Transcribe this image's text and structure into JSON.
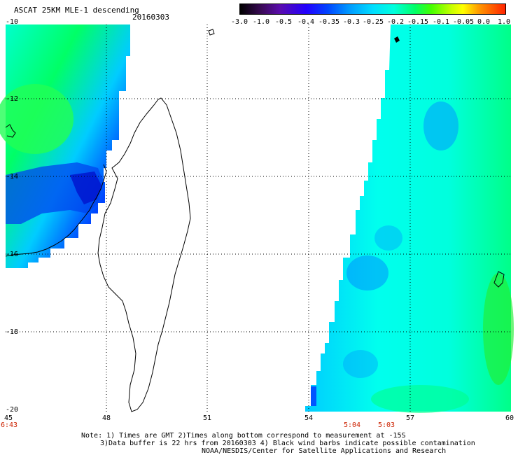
{
  "header": {
    "title": "ASCAT 25KM MLE-1 descending",
    "date": "20160303"
  },
  "colorbar": {
    "labels": [
      "-3.0",
      "-1.0",
      "-0.5",
      "-0.4",
      "-0.35",
      "-0.3",
      "-0.25",
      "-0.2",
      "-0.15",
      "-0.1",
      "-0.05",
      "0.0",
      "1.0"
    ]
  },
  "axes": {
    "lat_labels": [
      "-10",
      "-12",
      "-14",
      "-16",
      "-18",
      "-20"
    ],
    "lon_labels": [
      "45",
      "48",
      "51",
      "54",
      "57",
      "60"
    ]
  },
  "times": {
    "t1": "6:43",
    "t2": "5:04",
    "t3": "5:03"
  },
  "notes": {
    "line1": "Note: 1) Times are GMT 2)Times along bottom correspond to measurement at -15S",
    "line2": "3)Data buffer is 22 hrs from 20160303 4) Black wind barbs indicate possible contamination",
    "line3": "NOAA/NESDIS/Center for Satellite Applications and Research"
  },
  "colors": {
    "swath_base": "#00ffee",
    "swath_green": "#00ff7a",
    "swath_blue": "#0066ff",
    "swath_deep": "#0022dd",
    "time_text": "#cc2200"
  }
}
